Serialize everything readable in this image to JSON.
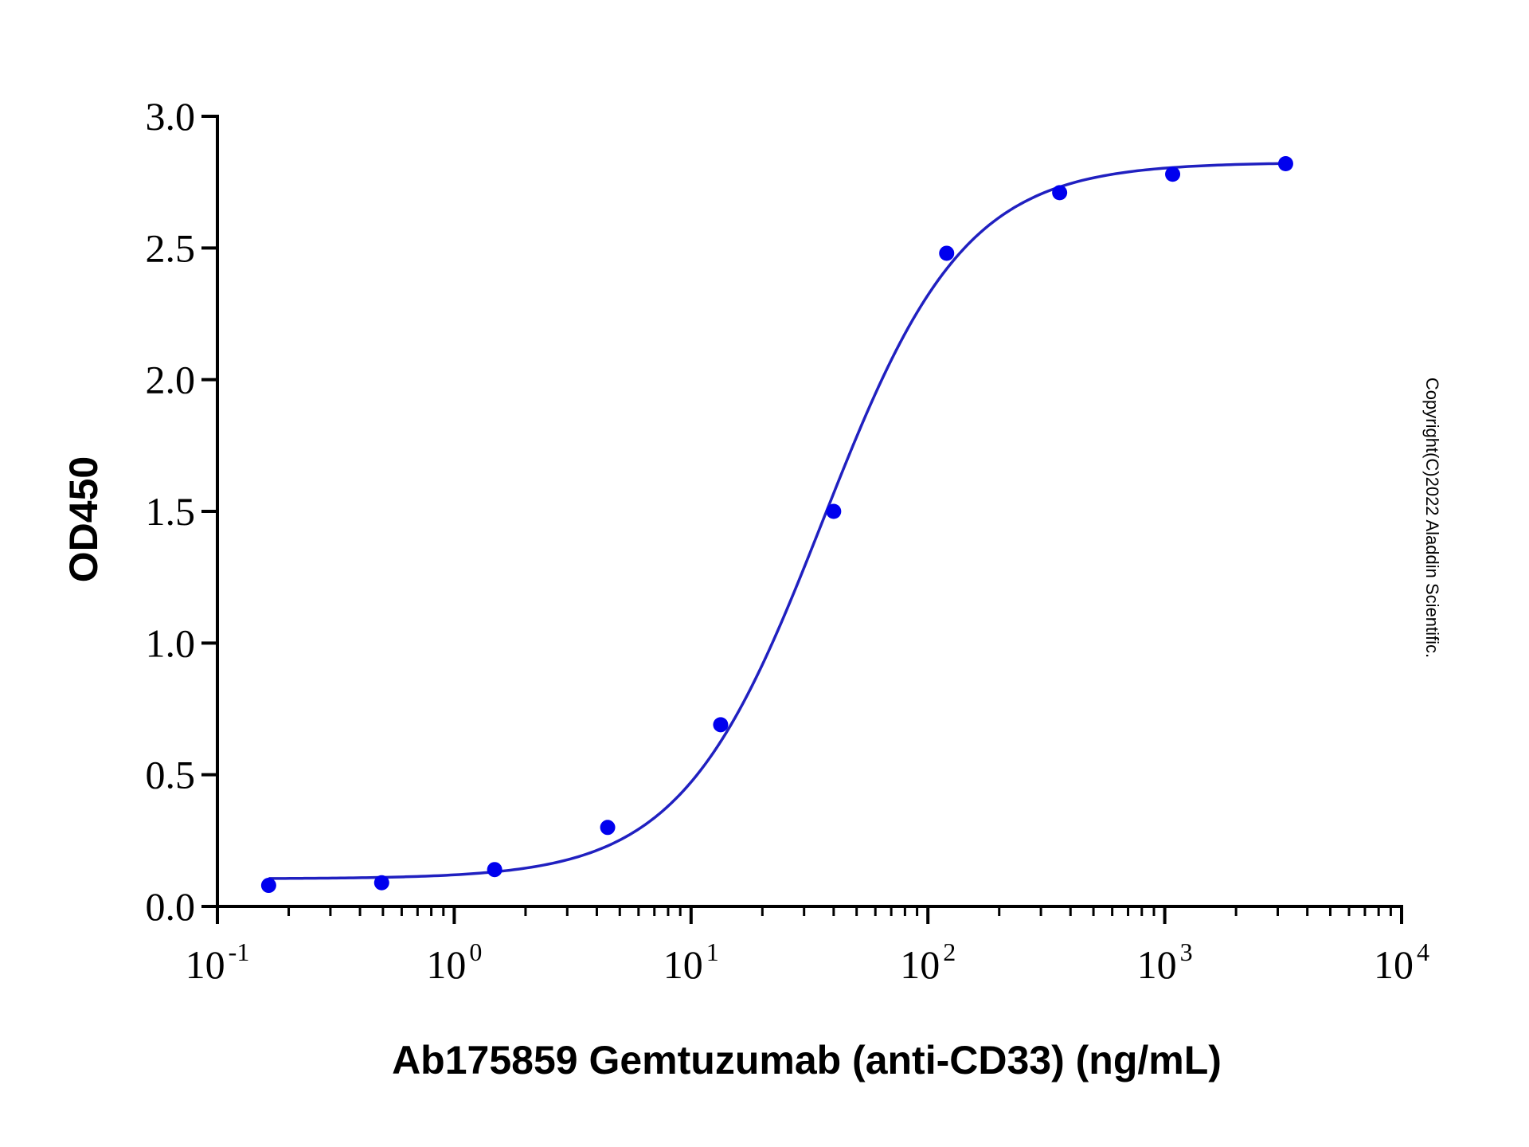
{
  "chart_data": {
    "type": "scatter",
    "xlabel": "Ab175859 Gemtuzumab (anti-CD33) (ng/mL)",
    "ylabel": "OD450",
    "x_scale": "log",
    "xlim": [
      0.1,
      10000
    ],
    "ylim": [
      0,
      3.0
    ],
    "x_ticks": [
      {
        "base": "10",
        "exp": "-1",
        "value": 0.1
      },
      {
        "base": "10",
        "exp": "0",
        "value": 1
      },
      {
        "base": "10",
        "exp": "1",
        "value": 10
      },
      {
        "base": "10",
        "exp": "2",
        "value": 100
      },
      {
        "base": "10",
        "exp": "3",
        "value": 1000
      },
      {
        "base": "10",
        "exp": "4",
        "value": 10000
      }
    ],
    "y_ticks": [
      "0.0",
      "0.5",
      "1.0",
      "1.5",
      "2.0",
      "2.5",
      "3.0"
    ],
    "grid": false,
    "legend": "none",
    "series": [
      {
        "color": "#0000ee",
        "x": [
          0.1646,
          0.4938,
          1.481,
          4.444,
          13.33,
          40.0,
          120.0,
          360.0,
          1080.0,
          3240.0
        ],
        "y": [
          0.08,
          0.09,
          0.14,
          0.3,
          0.69,
          1.5,
          2.48,
          2.71,
          2.78,
          2.82
        ]
      }
    ],
    "fit_curve": {
      "model": "4PL",
      "color": "#2020c0",
      "bottom": 0.105,
      "top": 2.825,
      "ec50": 36,
      "hill": 1.45
    },
    "copyright": "Copyright(C)2022 Aladdin Scientific."
  }
}
